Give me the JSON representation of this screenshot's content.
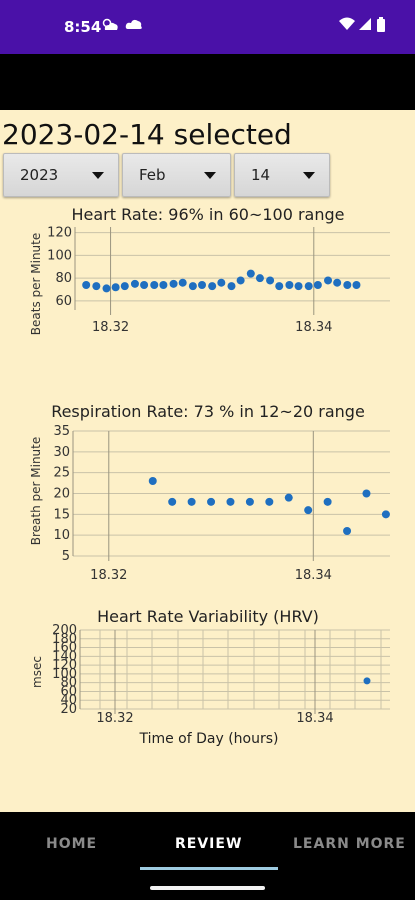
{
  "status_bar": {
    "time": "8:54"
  },
  "header": {
    "selected_text": "2023-02-14 selected"
  },
  "selectors": {
    "year": "2023",
    "month": "Feb",
    "day": "14"
  },
  "chart_data": [
    {
      "type": "scatter",
      "title": "Heart Rate: 96% in 60~100 range",
      "ylabel": "Beats per Minute",
      "xlabel": "",
      "x_ticks": [
        "18.32",
        "18.34"
      ],
      "x_tick_values": [
        18.32,
        18.34
      ],
      "xlim": [
        18.3165,
        18.3475
      ],
      "y_ticks": [
        60,
        80,
        100,
        120
      ],
      "ylim": [
        52,
        125
      ],
      "grid": true,
      "color": "#1f6fc0",
      "points": [
        [
          18.3176,
          74
        ],
        [
          18.3186,
          73
        ],
        [
          18.3196,
          71
        ],
        [
          18.3205,
          72
        ],
        [
          18.3214,
          73
        ],
        [
          18.3224,
          75
        ],
        [
          18.3233,
          74
        ],
        [
          18.3243,
          74
        ],
        [
          18.3252,
          74
        ],
        [
          18.3262,
          75
        ],
        [
          18.3271,
          76
        ],
        [
          18.3281,
          73
        ],
        [
          18.329,
          74
        ],
        [
          18.33,
          73
        ],
        [
          18.3309,
          76
        ],
        [
          18.3319,
          73
        ],
        [
          18.3328,
          78
        ],
        [
          18.3338,
          84
        ],
        [
          18.3347,
          80
        ],
        [
          18.3357,
          78
        ],
        [
          18.3366,
          73
        ],
        [
          18.3376,
          74
        ],
        [
          18.3385,
          73
        ],
        [
          18.3395,
          73
        ],
        [
          18.3404,
          74
        ],
        [
          18.3414,
          78
        ],
        [
          18.3423,
          76
        ],
        [
          18.3433,
          74
        ],
        [
          18.3442,
          74
        ]
      ]
    },
    {
      "type": "scatter",
      "title": "Respiration Rate: 73 % in 12~20 range",
      "ylabel": "Breath per Minute",
      "xlabel": "",
      "x_ticks": [
        "18.32",
        "18.34"
      ],
      "x_tick_values": [
        18.32,
        18.34
      ],
      "xlim": [
        18.3165,
        18.3475
      ],
      "y_ticks": [
        5,
        10,
        15,
        20,
        25,
        30,
        35
      ],
      "ylim": [
        5,
        35
      ],
      "grid": true,
      "color": "#1f6fc0",
      "points": [
        [
          18.3243,
          23
        ],
        [
          18.3262,
          18
        ],
        [
          18.3281,
          18
        ],
        [
          18.33,
          18
        ],
        [
          18.3319,
          18
        ],
        [
          18.3338,
          18
        ],
        [
          18.3357,
          18
        ],
        [
          18.3376,
          19
        ],
        [
          18.3395,
          16
        ],
        [
          18.3414,
          18
        ],
        [
          18.3433,
          11
        ],
        [
          18.3452,
          20
        ],
        [
          18.3471,
          15
        ]
      ]
    },
    {
      "type": "scatter",
      "title": "Heart Rate Variability (HRV)",
      "ylabel": "msec",
      "xlabel": "Time of Day (hours)",
      "x_ticks": [
        "18.32",
        "18.34"
      ],
      "x_tick_values": [
        18.32,
        18.34
      ],
      "xlim": [
        18.3165,
        18.3475
      ],
      "y_ticks": [
        20,
        40,
        60,
        80,
        100,
        120,
        140,
        160,
        180,
        200
      ],
      "ylim": [
        20,
        200
      ],
      "grid": true,
      "color": "#1f6fc0",
      "points": [
        [
          18.3452,
          84
        ]
      ]
    }
  ],
  "bottom_nav": {
    "tabs": [
      {
        "label": "HOME",
        "active": false
      },
      {
        "label": "REVIEW",
        "active": true
      },
      {
        "label": "LEARN MORE",
        "active": false
      }
    ],
    "active_color": "#ffffff",
    "inactive_color": "#8a8a8a",
    "indicator_color": "#9ecbe0"
  }
}
